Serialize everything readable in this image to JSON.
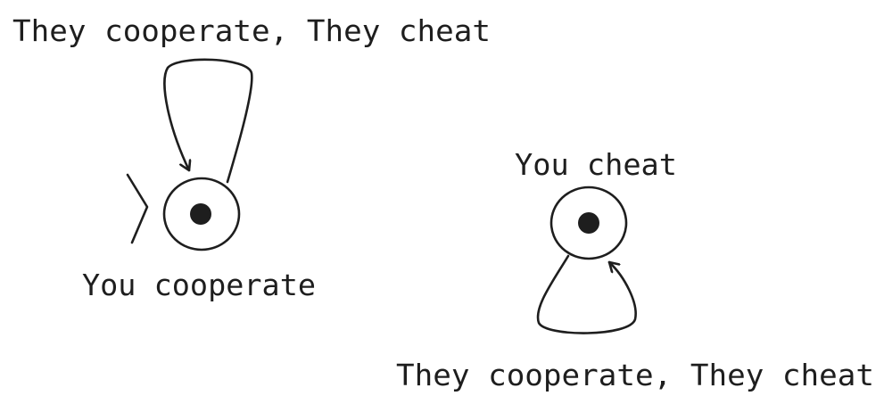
{
  "states": [
    {
      "label": "You cooperate",
      "is_start": true,
      "self_loop_label": "They cooperate, They cheat"
    },
    {
      "label": "You cheat",
      "is_start": false,
      "self_loop_label": "They cooperate, They cheat"
    }
  ]
}
